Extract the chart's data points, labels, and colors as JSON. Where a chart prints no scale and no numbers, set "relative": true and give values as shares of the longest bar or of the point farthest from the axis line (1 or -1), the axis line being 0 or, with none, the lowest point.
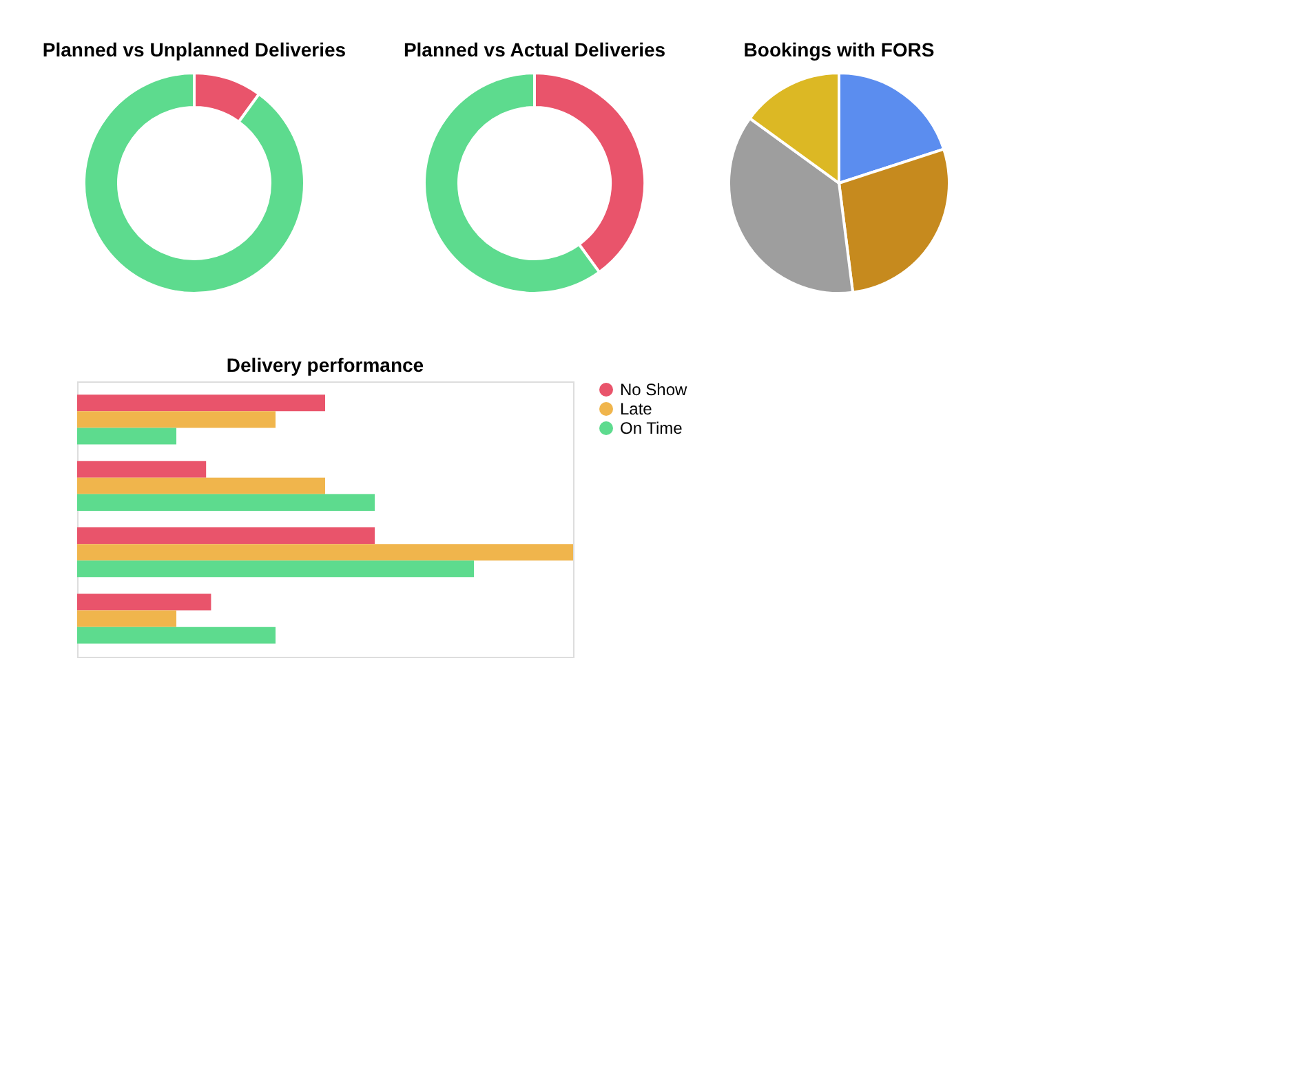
{
  "chart_data": [
    {
      "type": "donut",
      "title": "Planned vs Unplanned Deliveries",
      "categories": [
        null,
        null
      ],
      "values": [
        10,
        90
      ],
      "colors": [
        "#e9546b",
        "#5ddb8e"
      ]
    },
    {
      "type": "donut",
      "title": "Planned vs Actual Deliveries",
      "categories": [
        null,
        null
      ],
      "values": [
        40,
        60
      ],
      "colors": [
        "#e9546b",
        "#5ddb8e"
      ]
    },
    {
      "type": "pie",
      "title": "Bookings with FORS",
      "categories": [
        null,
        null,
        null,
        null
      ],
      "values": [
        20,
        28,
        37,
        15
      ],
      "colors": [
        "#5b8def",
        "#c68a1e",
        "#9e9e9e",
        "#dcb824"
      ]
    },
    {
      "type": "bar",
      "orientation": "horizontal",
      "relative": true,
      "title": "Delivery performance",
      "categories": [
        null,
        null,
        null,
        null
      ],
      "legend": "right",
      "series": [
        {
          "name": "No Show",
          "color": "#e9546b",
          "values": [
            0.5,
            0.26,
            0.6,
            0.27
          ]
        },
        {
          "name": "Late",
          "color": "#f0b54c",
          "values": [
            0.4,
            0.5,
            1.0,
            0.2
          ]
        },
        {
          "name": "On Time",
          "color": "#5ddb8e",
          "values": [
            0.2,
            0.6,
            0.8,
            0.4
          ]
        }
      ]
    }
  ]
}
